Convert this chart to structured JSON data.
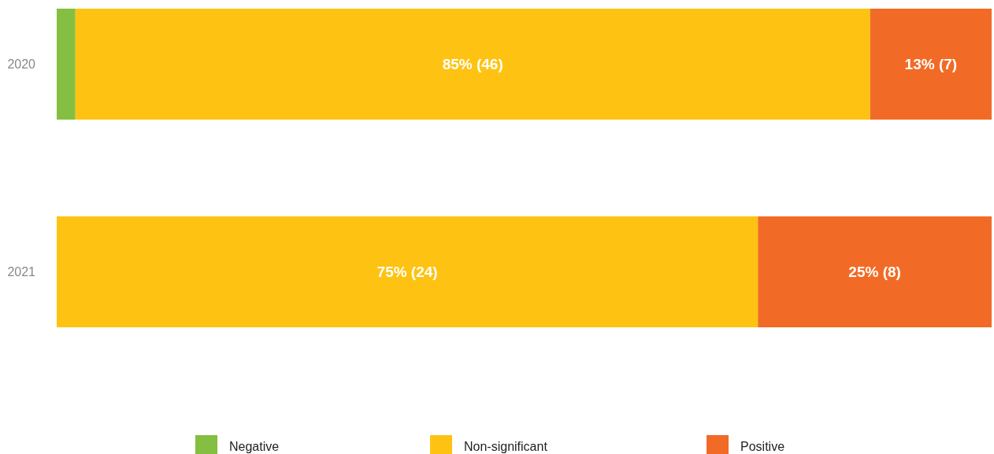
{
  "chart_data": {
    "type": "bar",
    "orientation": "horizontal",
    "stacked": true,
    "categories": [
      "2020",
      "2021"
    ],
    "series": [
      {
        "name": "Negative",
        "color": "#84bf41",
        "values": [
          2,
          0
        ]
      },
      {
        "name": "Non-significant",
        "color": "#fec312",
        "values": [
          85,
          75
        ],
        "value_labels": [
          "85% (46)",
          "75% (24)"
        ]
      },
      {
        "name": "Positive",
        "color": "#f26b26",
        "values": [
          13,
          25
        ],
        "value_labels": [
          "13% (7)",
          "25% (8)"
        ]
      }
    ],
    "xlim": [
      0,
      100
    ],
    "tick_labels": "y",
    "legend": "bottom"
  }
}
